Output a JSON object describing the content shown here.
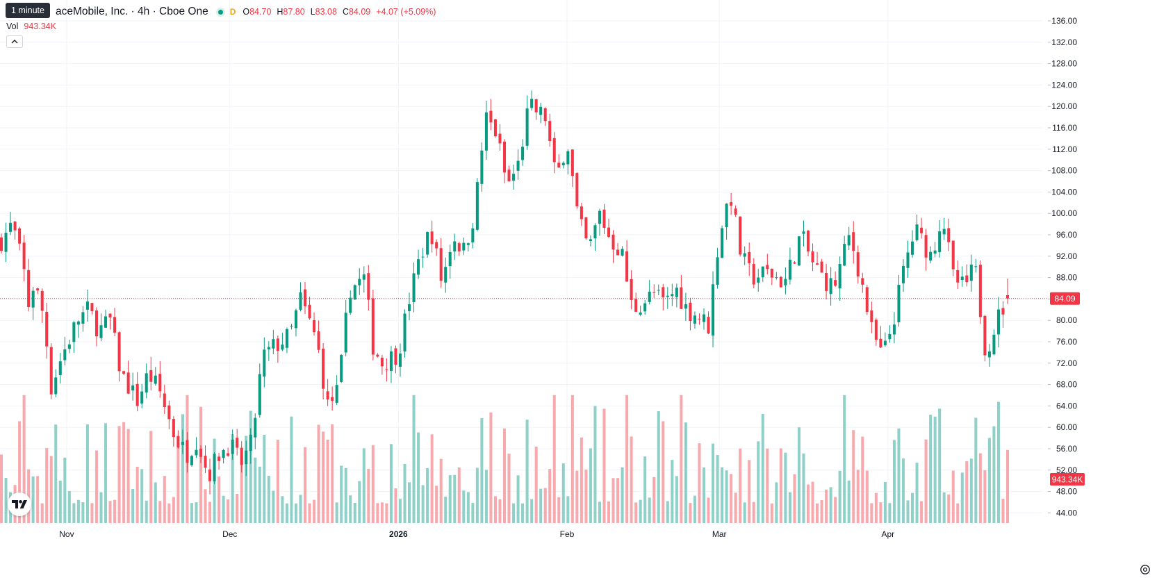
{
  "legend": {
    "title": "aceMobile, Inc. · 4h · Cboe One",
    "market_status": "D",
    "o_label": "O",
    "o_value": "84.70",
    "h_label": "H",
    "h_value": "87.80",
    "l_label": "L",
    "l_value": "83.08",
    "c_label": "C",
    "c_value": "84.09",
    "change": "+4.07 (+5.09%)"
  },
  "interval_tooltip": "1 minute",
  "volume_legend": {
    "label": "Vol",
    "value": "943.34K"
  },
  "colors": {
    "up": "#089981",
    "down": "#f23645",
    "up_volume": "#8fd1c8",
    "down_volume": "#f7a9ad",
    "price_line": "#f23645",
    "grid": "#f0f3fa",
    "axis_text": "#131722"
  },
  "icons": {
    "collapse": "chevron-up-icon",
    "logo": "tradingview-logo-icon",
    "settings": "gear-icon"
  },
  "chart_data": {
    "type": "candlestick",
    "title": "",
    "y_axis": {
      "range": [
        42,
        138
      ],
      "ticks": [
        136,
        132,
        128,
        124,
        120,
        116,
        112,
        108,
        104,
        100,
        96,
        92,
        88,
        84,
        80,
        76,
        72,
        68,
        64,
        60,
        56,
        52,
        48,
        44
      ],
      "tick_labels": [
        "136.00",
        "132.00",
        "128.00",
        "124.00",
        "120.00",
        "116.00",
        "112.00",
        "108.00",
        "104.00",
        "100.00",
        "96.00",
        "92.00",
        "88.00",
        "84.00",
        "80.00",
        "76.00",
        "72.00",
        "68.00",
        "64.00",
        "60.00",
        "56.00",
        "52.00",
        "48.00",
        "44.00"
      ]
    },
    "x_axis": {
      "range": [
        "2025-10-20",
        "2026-04-23"
      ],
      "ticks": [
        {
          "label": "Nov",
          "date": "2025-11-01",
          "bold": false
        },
        {
          "label": "Dec",
          "date": "2025-12-01",
          "bold": false
        },
        {
          "label": "2026",
          "date": "2026-01-01",
          "bold": true
        },
        {
          "label": "Feb",
          "date": "2026-02-01",
          "bold": false
        },
        {
          "label": "Mar",
          "date": "2026-03-01",
          "bold": false
        },
        {
          "label": "Apr",
          "date": "2026-04-01",
          "bold": false
        }
      ]
    },
    "last_price": {
      "value": 84.09,
      "label": "84.09"
    },
    "last_volume": {
      "label": "943.34K",
      "direction": "down"
    },
    "anchors": [
      [
        "2025-10-20",
        95
      ],
      [
        "2025-10-22",
        98
      ],
      [
        "2025-10-24",
        90
      ],
      [
        "2025-10-25",
        83
      ],
      [
        "2025-10-26",
        87
      ],
      [
        "2025-10-28",
        80
      ],
      [
        "2025-10-29",
        67
      ],
      [
        "2025-10-31",
        73
      ],
      [
        "2025-11-03",
        80
      ],
      [
        "2025-11-05",
        82
      ],
      [
        "2025-11-07",
        78
      ],
      [
        "2025-11-09",
        80
      ],
      [
        "2025-11-11",
        70
      ],
      [
        "2025-11-14",
        65
      ],
      [
        "2025-11-16",
        70
      ],
      [
        "2025-11-18",
        67
      ],
      [
        "2025-11-21",
        58
      ],
      [
        "2025-11-23",
        55
      ],
      [
        "2025-11-25",
        58
      ],
      [
        "2025-11-27",
        51
      ],
      [
        "2025-11-29",
        55
      ],
      [
        "2025-12-01",
        57
      ],
      [
        "2025-12-03",
        53
      ],
      [
        "2025-12-05",
        57
      ],
      [
        "2025-12-07",
        73
      ],
      [
        "2025-12-09",
        75
      ],
      [
        "2025-12-12",
        77
      ],
      [
        "2025-12-14",
        84
      ],
      [
        "2025-12-17",
        76
      ],
      [
        "2025-12-19",
        64
      ],
      [
        "2025-12-21",
        67
      ],
      [
        "2025-12-23",
        86
      ],
      [
        "2025-12-26",
        88
      ],
      [
        "2025-12-27",
        76
      ],
      [
        "2025-12-29",
        72
      ],
      [
        "2026-01-01",
        74
      ],
      [
        "2026-01-03",
        84
      ],
      [
        "2026-01-05",
        92
      ],
      [
        "2026-01-07",
        97
      ],
      [
        "2026-01-09",
        87
      ],
      [
        "2026-01-11",
        96
      ],
      [
        "2026-01-13",
        93
      ],
      [
        "2026-01-15",
        100
      ],
      [
        "2026-01-17",
        118
      ],
      [
        "2026-01-19",
        115
      ],
      [
        "2026-01-21",
        105
      ],
      [
        "2026-01-23",
        109
      ],
      [
        "2026-01-25",
        120
      ],
      [
        "2026-01-28",
        118
      ],
      [
        "2026-01-30",
        106
      ],
      [
        "2026-02-01",
        114
      ],
      [
        "2026-02-03",
        99
      ],
      [
        "2026-02-05",
        93
      ],
      [
        "2026-02-07",
        100
      ],
      [
        "2026-02-09",
        95
      ],
      [
        "2026-02-11",
        93
      ],
      [
        "2026-02-13",
        82
      ],
      [
        "2026-02-17",
        85
      ],
      [
        "2026-02-19",
        83
      ],
      [
        "2026-02-21",
        86
      ],
      [
        "2026-02-23",
        82
      ],
      [
        "2026-02-25",
        81
      ],
      [
        "2026-02-27",
        79
      ],
      [
        "2026-03-01",
        96
      ],
      [
        "2026-03-03",
        104
      ],
      [
        "2026-03-05",
        92
      ],
      [
        "2026-03-07",
        88
      ],
      [
        "2026-03-10",
        89
      ],
      [
        "2026-03-13",
        87
      ],
      [
        "2026-03-16",
        96
      ],
      [
        "2026-03-18",
        91
      ],
      [
        "2026-03-20",
        88
      ],
      [
        "2026-03-22",
        86
      ],
      [
        "2026-03-25",
        96
      ],
      [
        "2026-03-27",
        88
      ],
      [
        "2026-03-29",
        78
      ],
      [
        "2026-03-31",
        73
      ],
      [
        "2026-04-02",
        80
      ],
      [
        "2026-04-04",
        90
      ],
      [
        "2026-04-06",
        97
      ],
      [
        "2026-04-09",
        92
      ],
      [
        "2026-04-11",
        100
      ],
      [
        "2026-04-13",
        88
      ],
      [
        "2026-04-15",
        86
      ],
      [
        "2026-04-17",
        90
      ],
      [
        "2026-04-19",
        74
      ],
      [
        "2026-04-21",
        80
      ],
      [
        "2026-04-23",
        84
      ]
    ],
    "candles_per_day": 1.2,
    "volume_scale_max": 1.0
  }
}
